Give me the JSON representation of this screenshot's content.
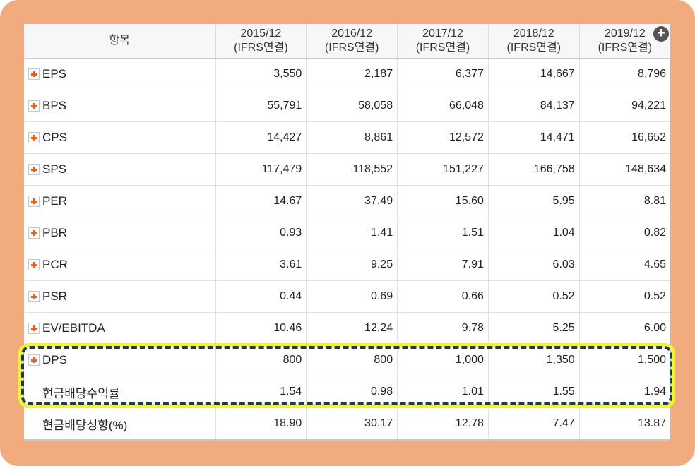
{
  "table": {
    "header_label": "항목",
    "columns": [
      {
        "period": "2015/12",
        "basis": "(IFRS연결)"
      },
      {
        "period": "2016/12",
        "basis": "(IFRS연결)"
      },
      {
        "period": "2017/12",
        "basis": "(IFRS연결)"
      },
      {
        "period": "2018/12",
        "basis": "(IFRS연결)"
      },
      {
        "period": "2019/12",
        "basis": "(IFRS연결)"
      }
    ],
    "add_column_icon": "plus-circle-icon",
    "rows": [
      {
        "label": "EPS",
        "expandable": true,
        "values": [
          "3,550",
          "2,187",
          "6,377",
          "14,667",
          "8,796"
        ]
      },
      {
        "label": "BPS",
        "expandable": true,
        "values": [
          "55,791",
          "58,058",
          "66,048",
          "84,137",
          "94,221"
        ]
      },
      {
        "label": "CPS",
        "expandable": true,
        "values": [
          "14,427",
          "8,861",
          "12,572",
          "14,471",
          "16,652"
        ]
      },
      {
        "label": "SPS",
        "expandable": true,
        "values": [
          "117,479",
          "118,552",
          "151,227",
          "166,758",
          "148,634"
        ]
      },
      {
        "label": "PER",
        "expandable": true,
        "values": [
          "14.67",
          "37.49",
          "15.60",
          "5.95",
          "8.81"
        ]
      },
      {
        "label": "PBR",
        "expandable": true,
        "values": [
          "0.93",
          "1.41",
          "1.51",
          "1.04",
          "0.82"
        ]
      },
      {
        "label": "PCR",
        "expandable": true,
        "values": [
          "3.61",
          "9.25",
          "7.91",
          "6.03",
          "4.65"
        ]
      },
      {
        "label": "PSR",
        "expandable": true,
        "values": [
          "0.44",
          "0.69",
          "0.66",
          "0.52",
          "0.52"
        ]
      },
      {
        "label": "EV/EBITDA",
        "expandable": true,
        "values": [
          "10.46",
          "12.24",
          "9.78",
          "5.25",
          "6.00"
        ]
      },
      {
        "label": "DPS",
        "expandable": true,
        "values": [
          "800",
          "800",
          "1,000",
          "1,350",
          "1,500"
        ]
      },
      {
        "label": "현금배당수익률",
        "expandable": false,
        "values": [
          "1.54",
          "0.98",
          "1.01",
          "1.55",
          "1.94"
        ]
      },
      {
        "label": "현금배당성향(%)",
        "expandable": false,
        "values": [
          "18.90",
          "30.17",
          "12.78",
          "7.47",
          "13.87"
        ]
      }
    ]
  },
  "colors": {
    "frame": "#f2aa7f",
    "highlight_outer": "#f2f23a",
    "highlight_dash": "#1f3a4c",
    "expand_plus": "#e8611a"
  }
}
